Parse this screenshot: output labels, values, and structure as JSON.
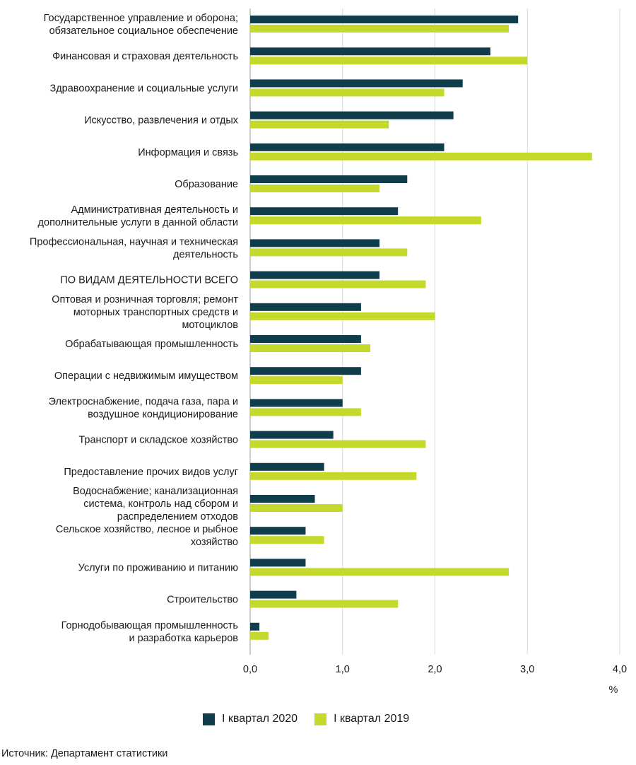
{
  "chart_data": {
    "type": "bar",
    "orientation": "horizontal",
    "categories": [
      "Государственное управление и оборона;\nобязательное социальное обеспечение",
      "Финансовая и страховая деятельность",
      "Здравоохранение и социальные услуги",
      "Искусство, развлечения и отдых",
      "Информация и связь",
      "Образование",
      "Административная деятельность и\nдополнительные услуги в данной области",
      "Профессиональная, научная и техническая\nдеятельность",
      "ПО ВИДАМ ДЕЯТЕЛЬНОСТИ ВСЕГО",
      "Оптовая и розничная торговля; ремонт\nмоторных транспортных средств и\nмотоциклов",
      "Обрабатывающая промышленность",
      "Операции с недвижимым имуществом",
      "Электроснабжение, подача газа, пара и\nвоздушное кондиционирование",
      "Транспорт и складское хозяйство",
      "Предоставление прочих видов услуг",
      "Водоснабжение; канализационная\nсистема, контроль над сбором и\nраспределением отходов",
      "Сельское хозяйство, лесное и рыбное\nхозяйство",
      "Услуги по проживанию и питанию",
      "Строительство",
      "Горнодобывающая промышленность\nи разработка карьеров"
    ],
    "series": [
      {
        "name": "I квартал 2020",
        "color": "#0f3d4c",
        "values": [
          2.9,
          2.6,
          2.3,
          2.2,
          2.1,
          1.7,
          1.6,
          1.4,
          1.4,
          1.2,
          1.2,
          1.2,
          1.0,
          0.9,
          0.8,
          0.7,
          0.6,
          0.6,
          0.5,
          0.1
        ]
      },
      {
        "name": "I квартал 2019",
        "color": "#c5d82c",
        "values": [
          2.8,
          3.0,
          2.1,
          1.5,
          3.7,
          1.4,
          2.5,
          1.7,
          1.9,
          2.0,
          1.3,
          1.0,
          1.2,
          1.9,
          1.8,
          1.0,
          0.8,
          2.8,
          1.6,
          0.2
        ]
      }
    ],
    "xlim": [
      0,
      4
    ],
    "xticks": [
      "0,0",
      "1,0",
      "2,0",
      "3,0",
      "4,0"
    ],
    "xunit": "%",
    "grid": "vertical",
    "legend_position": "bottom"
  },
  "source_text": "Источник: Департамент статистики"
}
